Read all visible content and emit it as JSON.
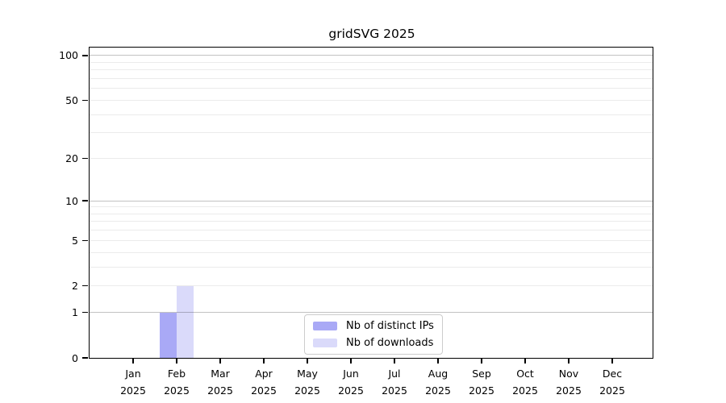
{
  "chart_data": {
    "type": "bar",
    "title": "gridSVG 2025",
    "categories": [
      "Jan",
      "Feb",
      "Mar",
      "Apr",
      "May",
      "Jun",
      "Jul",
      "Aug",
      "Sep",
      "Oct",
      "Nov",
      "Dec"
    ],
    "x_year": "2025",
    "series": [
      {
        "name": "Nb of distinct IPs",
        "color": "#a9a9f6",
        "values": [
          0,
          1,
          0,
          0,
          0,
          0,
          0,
          0,
          0,
          0,
          0,
          0
        ]
      },
      {
        "name": "Nb of downloads",
        "color": "#dadafa",
        "values": [
          0,
          2,
          0,
          0,
          0,
          0,
          0,
          0,
          0,
          0,
          0,
          0
        ]
      }
    ],
    "y_ticks": [
      0,
      1,
      2,
      5,
      10,
      20,
      50,
      100
    ],
    "y_gridlines_major": [
      1,
      10,
      100
    ],
    "y_gridlines_minor": [
      2,
      3,
      4,
      5,
      6,
      7,
      8,
      9,
      20,
      30,
      40,
      50,
      60,
      70,
      80,
      90
    ],
    "y_scale": "log1p",
    "ylim": [
      0,
      113
    ],
    "grid": "horizontal",
    "legend_position": "bottom-center"
  }
}
